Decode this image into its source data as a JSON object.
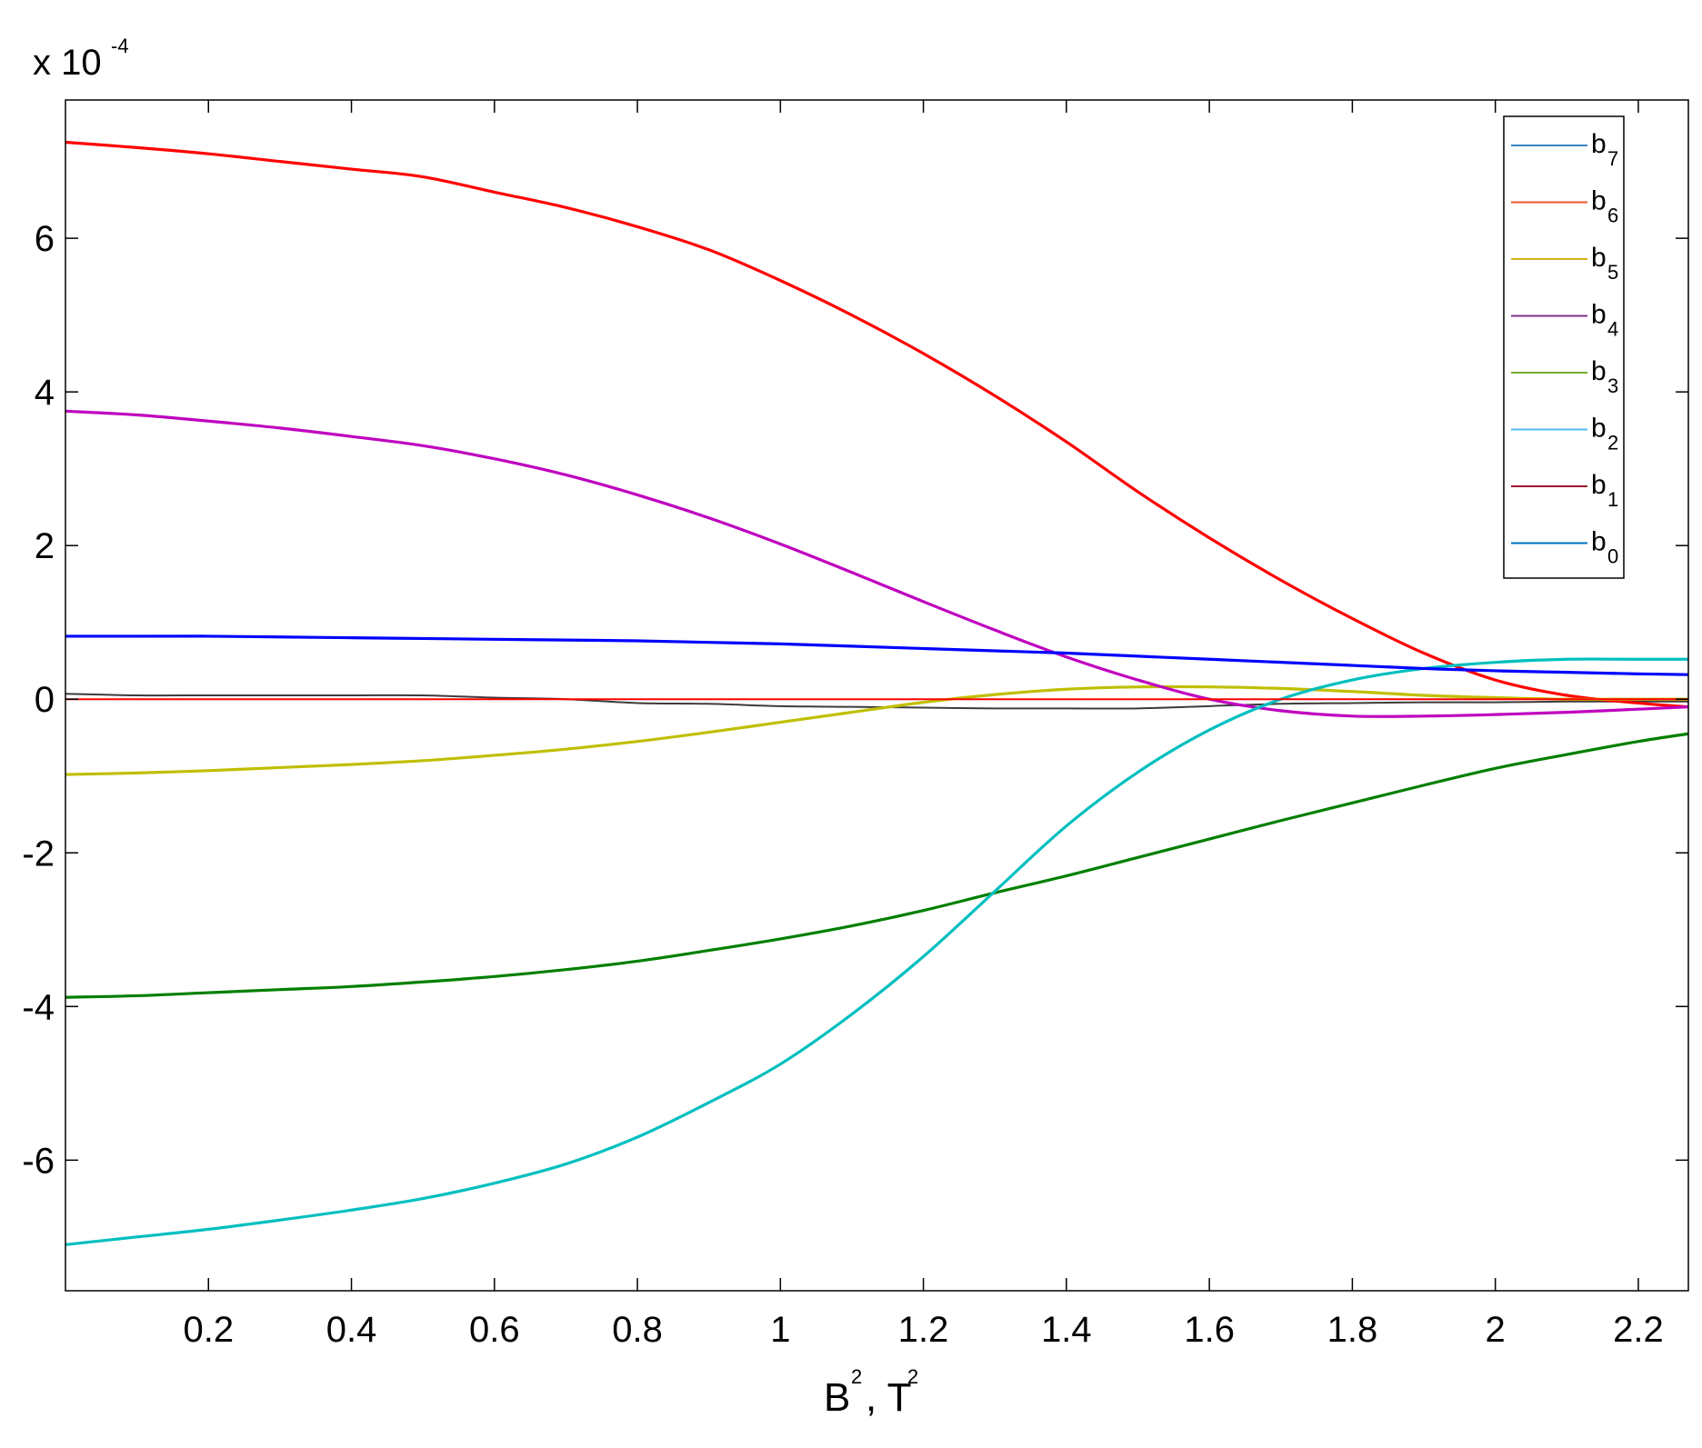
{
  "chart_data": {
    "type": "line",
    "title": "",
    "xlabel": "B",
    "xlabel_sup": "2",
    "xlabel_mid": ", T",
    "xlabel_sup2": "2",
    "ylabel": "",
    "y_multiplier": "x 10",
    "y_multiplier_exp": "-4",
    "xlim": [
      0,
      2.27
    ],
    "ylim": [
      -7.7,
      7.8
    ],
    "x_ticks": [
      0.2,
      0.4,
      0.6,
      0.8,
      1,
      1.2,
      1.4,
      1.6,
      1.8,
      2,
      2.2
    ],
    "x_tick_labels": [
      "0.2",
      "0.4",
      "0.6",
      "0.8",
      "1",
      "1.2",
      "1.4",
      "1.6",
      "1.8",
      "2",
      "2.2"
    ],
    "y_ticks": [
      -6,
      -4,
      -2,
      0,
      2,
      4,
      6
    ],
    "y_tick_labels": [
      "-6",
      "-4",
      "-2",
      "0",
      "2",
      "4",
      "6"
    ],
    "grid": false,
    "legend_position": "top-right",
    "x": [
      0,
      0.1,
      0.2,
      0.3,
      0.4,
      0.5,
      0.6,
      0.7,
      0.8,
      0.9,
      1.0,
      1.1,
      1.2,
      1.3,
      1.4,
      1.5,
      1.6,
      1.7,
      1.8,
      1.9,
      2.0,
      2.1,
      2.2,
      2.27
    ],
    "series": [
      {
        "name": "b",
        "sub": "7",
        "color": "#1f77b4",
        "legend_color": "#3a84c4",
        "values": [
          0.07,
          0.05,
          0.05,
          0.05,
          0.05,
          0.05,
          0.02,
          0.0,
          -0.05,
          -0.06,
          -0.09,
          -0.1,
          -0.11,
          -0.12,
          -0.12,
          -0.12,
          -0.09,
          -0.06,
          -0.05,
          -0.04,
          -0.04,
          -0.03,
          -0.03,
          -0.03
        ]
      },
      {
        "name": "b",
        "sub": "6",
        "color": "#ff0000",
        "legend_color": "#e8552a",
        "values": [
          7.25,
          7.18,
          7.1,
          7.0,
          6.9,
          6.8,
          6.6,
          6.4,
          6.15,
          5.85,
          5.45,
          5.0,
          4.5,
          3.95,
          3.35,
          2.7,
          2.1,
          1.55,
          1.05,
          0.6,
          0.25,
          0.05,
          -0.05,
          -0.1
        ]
      },
      {
        "name": "b",
        "sub": "5",
        "color": "#bfbf00",
        "legend_color": "#d9b21b",
        "values": [
          -0.98,
          -0.96,
          -0.93,
          -0.89,
          -0.85,
          -0.8,
          -0.73,
          -0.65,
          -0.55,
          -0.43,
          -0.3,
          -0.17,
          -0.04,
          0.06,
          0.13,
          0.16,
          0.16,
          0.14,
          0.1,
          0.05,
          0.02,
          0.0,
          0.0,
          0.0
        ]
      },
      {
        "name": "b",
        "sub": "4",
        "color": "#bf00bf",
        "legend_color": "#7e2f8e",
        "values": [
          3.75,
          3.7,
          3.62,
          3.53,
          3.42,
          3.3,
          3.13,
          2.92,
          2.66,
          2.36,
          2.02,
          1.65,
          1.27,
          0.9,
          0.55,
          0.25,
          0.0,
          -0.15,
          -0.22,
          -0.22,
          -0.2,
          -0.17,
          -0.13,
          -0.1
        ]
      },
      {
        "name": "b",
        "sub": "3",
        "color": "#007f00",
        "legend_color": "#77ac30",
        "values": [
          -3.88,
          -3.86,
          -3.82,
          -3.78,
          -3.74,
          -3.68,
          -3.61,
          -3.52,
          -3.41,
          -3.27,
          -3.12,
          -2.95,
          -2.75,
          -2.52,
          -2.3,
          -2.06,
          -1.82,
          -1.58,
          -1.35,
          -1.12,
          -0.9,
          -0.72,
          -0.55,
          -0.45
        ]
      },
      {
        "name": "b",
        "sub": "2",
        "color": "#00bfbf",
        "legend_color": "#4dbeee",
        "values": [
          -7.1,
          -7.0,
          -6.9,
          -6.78,
          -6.65,
          -6.5,
          -6.3,
          -6.05,
          -5.7,
          -5.25,
          -4.75,
          -4.1,
          -3.35,
          -2.5,
          -1.65,
          -0.95,
          -0.4,
          0.0,
          0.25,
          0.4,
          0.48,
          0.52,
          0.52,
          0.52
        ]
      },
      {
        "name": "b",
        "sub": "1",
        "color": "#ff0000",
        "legend_color": "#a2142f",
        "values": [
          0.0,
          0.0,
          0.0,
          0.0,
          0.0,
          0.0,
          0.0,
          0.0,
          0.0,
          0.0,
          0.0,
          0.0,
          0.0,
          0.0,
          0.0,
          0.0,
          0.0,
          0.0,
          0.0,
          0.0,
          0.0,
          0.0,
          0.0,
          0.0
        ]
      },
      {
        "name": "b",
        "sub": "0",
        "color": "#0000ff",
        "legend_color": "#0072bd",
        "values": [
          0.82,
          0.82,
          0.82,
          0.81,
          0.8,
          0.79,
          0.78,
          0.77,
          0.76,
          0.74,
          0.72,
          0.69,
          0.66,
          0.63,
          0.6,
          0.56,
          0.52,
          0.48,
          0.44,
          0.4,
          0.37,
          0.35,
          0.33,
          0.32
        ]
      }
    ]
  }
}
